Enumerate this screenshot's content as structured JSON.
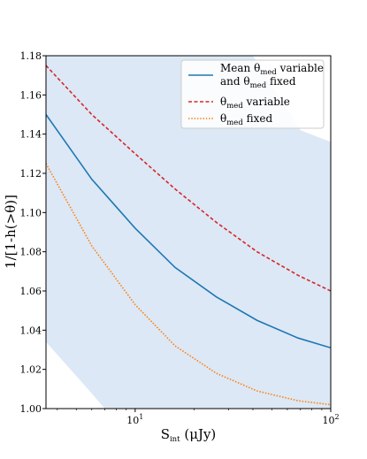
{
  "chart_data": {
    "type": "line",
    "xscale": "log",
    "xlim": [
      3.5,
      100
    ],
    "ylim": [
      1.0,
      1.18
    ],
    "xticks": [
      {
        "value": 10,
        "base": "10",
        "exp": "1"
      },
      {
        "value": 100,
        "base": "10",
        "exp": "2"
      }
    ],
    "yticks": [
      "1.00",
      "1.02",
      "1.04",
      "1.06",
      "1.08",
      "1.10",
      "1.12",
      "1.14",
      "1.16",
      "1.18"
    ],
    "xlabel": {
      "main": "S",
      "sub": "int",
      "rest": " (μJy)"
    },
    "ylabel": "1/[1-h(>θ)]",
    "legend_position": "top-right",
    "grid": false,
    "shaded_band": {
      "color": "#dce8f5",
      "lower": [
        [
          3.5,
          1.034
        ],
        [
          5.5,
          1.012
        ],
        [
          7.0,
          1.0
        ]
      ],
      "upper": [
        [
          3.5,
          1.18
        ],
        [
          40,
          1.18
        ],
        [
          70,
          1.142
        ],
        [
          100,
          1.136
        ]
      ]
    },
    "series": [
      {
        "name_main": "Mean θ",
        "name_sub": "med",
        "name_rest": " variable",
        "name_line2_main": "and θ",
        "name_line2_sub": "med",
        "name_line2_rest": " fixed",
        "color": "#1f77b4",
        "style": "solid",
        "x": [
          3.5,
          6,
          10,
          16,
          26,
          42,
          68,
          100
        ],
        "y": [
          1.15,
          1.117,
          1.092,
          1.072,
          1.057,
          1.045,
          1.036,
          1.031
        ]
      },
      {
        "name_main": "θ",
        "name_sub": "med",
        "name_rest": " variable",
        "color": "#d62728",
        "style": "dashed",
        "x": [
          3.5,
          6,
          10,
          16,
          26,
          42,
          68,
          100
        ],
        "y": [
          1.175,
          1.15,
          1.13,
          1.112,
          1.095,
          1.08,
          1.068,
          1.06
        ]
      },
      {
        "name_main": "θ",
        "name_sub": "med",
        "name_rest": " fixed",
        "color": "#ff7f0e",
        "style": "dotted",
        "x": [
          3.5,
          6,
          10,
          16,
          26,
          42,
          68,
          100
        ],
        "y": [
          1.125,
          1.083,
          1.053,
          1.032,
          1.018,
          1.009,
          1.004,
          1.002
        ]
      }
    ]
  }
}
